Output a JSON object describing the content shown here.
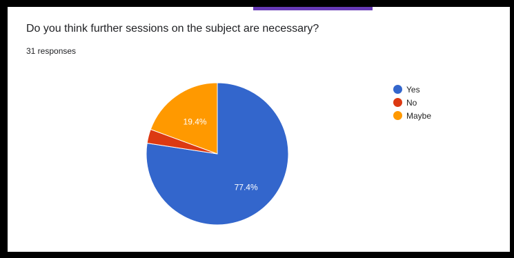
{
  "question": "Do you think further sessions on the subject are necessary?",
  "responses": "31 responses",
  "accent_color": "#673ab7",
  "chart_data": {
    "type": "pie",
    "categories": [
      "Yes",
      "No",
      "Maybe"
    ],
    "values": [
      77.4,
      3.2,
      19.4
    ],
    "value_labels": [
      "77.4%",
      "",
      "19.4%"
    ],
    "colors": [
      "#3366cc",
      "#dc3912",
      "#ff9900"
    ],
    "title": "",
    "legend_position": "right"
  }
}
